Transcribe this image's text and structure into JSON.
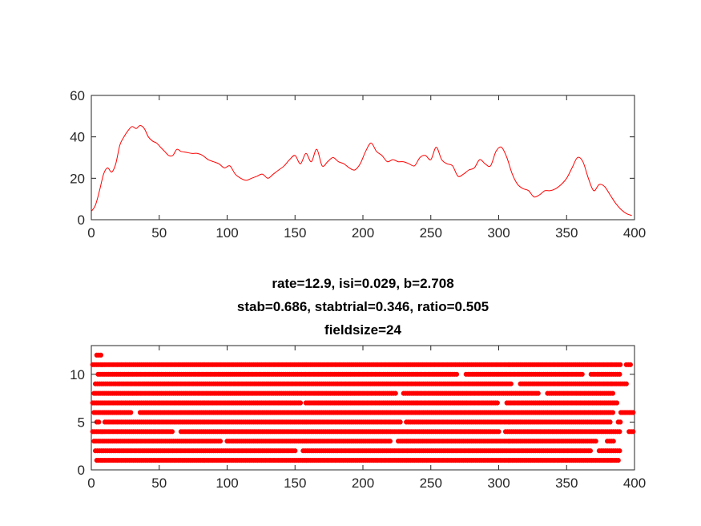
{
  "chart_data": [
    {
      "type": "line",
      "title": "",
      "xlabel": "",
      "ylabel": "",
      "xlim": [
        0,
        400
      ],
      "ylim": [
        0,
        60
      ],
      "xticks": [
        "0",
        "50",
        "100",
        "150",
        "200",
        "250",
        "300",
        "350",
        "400"
      ],
      "yticks": [
        "0",
        "20",
        "40",
        "60"
      ],
      "color": "#ff0000",
      "grid": false,
      "series": [
        {
          "x": [
            0,
            3,
            6,
            9,
            12,
            15,
            18,
            21,
            24,
            27,
            30,
            33,
            36,
            39,
            42,
            45,
            48,
            51,
            54,
            57,
            60,
            63,
            66,
            70,
            74,
            78,
            82,
            86,
            90,
            94,
            98,
            102,
            106,
            110,
            114,
            118,
            122,
            126,
            130,
            134,
            138,
            142,
            146,
            150,
            154,
            158,
            162,
            166,
            170,
            174,
            178,
            182,
            186,
            190,
            194,
            198,
            202,
            206,
            210,
            214,
            218,
            222,
            226,
            230,
            234,
            238,
            242,
            246,
            250,
            254,
            258,
            262,
            266,
            270,
            274,
            278,
            282,
            286,
            290,
            294,
            298,
            302,
            306,
            310,
            314,
            318,
            322,
            326,
            330,
            334,
            338,
            342,
            346,
            350,
            354,
            358,
            362,
            366,
            370,
            374,
            378,
            382,
            386,
            390,
            394,
            398
          ],
          "y": [
            4,
            7,
            14,
            22,
            25,
            23,
            27,
            36,
            40,
            43,
            45,
            44,
            45.5,
            44,
            40,
            38,
            37,
            35,
            33,
            31,
            31,
            34,
            33,
            32.5,
            32,
            32,
            31,
            29,
            28,
            27,
            25,
            26,
            22,
            20,
            19,
            20,
            21,
            22,
            20,
            22,
            24,
            26,
            29,
            31,
            27,
            32,
            28,
            34,
            26,
            28,
            30,
            28,
            27,
            25,
            24,
            27,
            33,
            37,
            33,
            31,
            28,
            29,
            28,
            28,
            27,
            26,
            30,
            31,
            29,
            35,
            29,
            27,
            26,
            21,
            22,
            24,
            25,
            29,
            27,
            26,
            33,
            35,
            30,
            22,
            17,
            15,
            14,
            11,
            12,
            14,
            14,
            15,
            17,
            20,
            25,
            30,
            28,
            20,
            14,
            17,
            16,
            12,
            8,
            5,
            3,
            2
          ]
        }
      ]
    },
    {
      "type": "scatter",
      "title": [
        "rate=12.9, isi=0.029, b=2.708",
        "stab=0.686, stabtrial=0.346, ratio=0.505",
        "fieldsize=24"
      ],
      "xlabel": "",
      "ylabel": "",
      "xlim": [
        0,
        400
      ],
      "ylim": [
        0,
        13
      ],
      "xticks": [
        "0",
        "50",
        "100",
        "150",
        "200",
        "250",
        "300",
        "350",
        "400"
      ],
      "yticks": [
        "0",
        "5",
        "10"
      ],
      "color": "#ff0000",
      "grid": false,
      "rows": [
        {
          "trial": 1,
          "segments": [
            [
              4,
              388
            ]
          ]
        },
        {
          "trial": 2,
          "segments": [
            [
              3,
              150
            ],
            [
              156,
              368
            ],
            [
              374,
              390
            ]
          ]
        },
        {
          "trial": 3,
          "segments": [
            [
              2,
              95
            ],
            [
              100,
              220
            ],
            [
              226,
              372
            ],
            [
              380,
              385
            ]
          ]
        },
        {
          "trial": 4,
          "segments": [
            [
              1,
              60
            ],
            [
              66,
              300
            ],
            [
              305,
              390
            ],
            [
              396,
              399
            ]
          ]
        },
        {
          "trial": 5,
          "segments": [
            [
              4,
              6
            ],
            [
              10,
              228
            ],
            [
              232,
              382
            ],
            [
              388,
              390
            ]
          ]
        },
        {
          "trial": 6,
          "segments": [
            [
              2,
              30
            ],
            [
              36,
              384
            ],
            [
              390,
              399
            ]
          ]
        },
        {
          "trial": 7,
          "segments": [
            [
              1,
              154
            ],
            [
              158,
              300
            ],
            [
              306,
              388
            ]
          ]
        },
        {
          "trial": 8,
          "segments": [
            [
              2,
              225
            ],
            [
              230,
              330
            ],
            [
              336,
              385
            ]
          ]
        },
        {
          "trial": 9,
          "segments": [
            [
              3,
              310
            ],
            [
              316,
              395
            ]
          ]
        },
        {
          "trial": 10,
          "segments": [
            [
              5,
              270
            ],
            [
              276,
              362
            ],
            [
              368,
              390
            ]
          ]
        },
        {
          "trial": 11,
          "segments": [
            [
              1,
              390
            ],
            [
              394,
              398
            ]
          ]
        },
        {
          "trial": 12,
          "segments": [
            [
              4,
              7
            ]
          ]
        }
      ]
    }
  ]
}
